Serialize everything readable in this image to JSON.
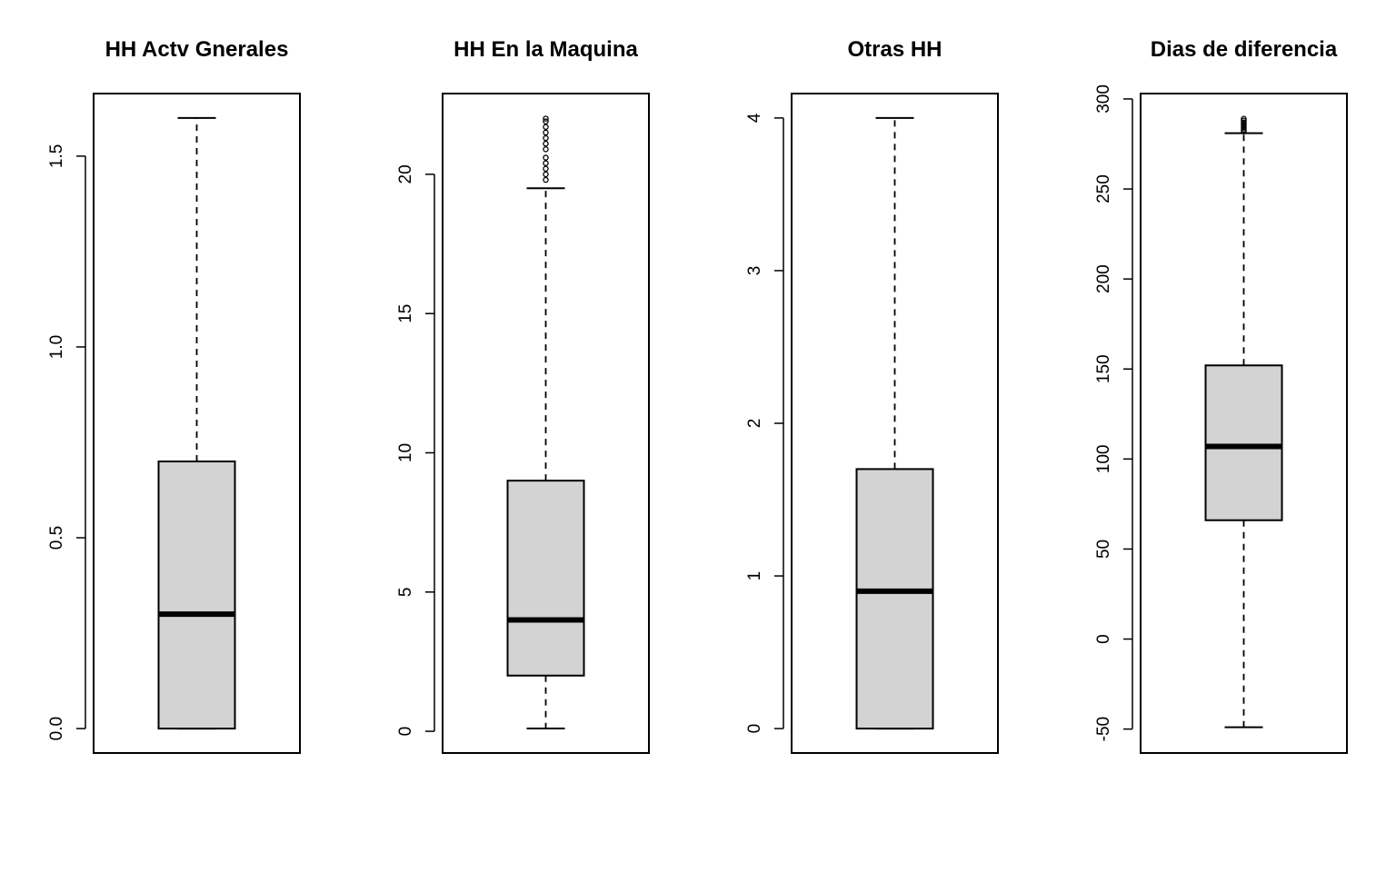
{
  "chart_data": [
    {
      "type": "boxplot",
      "title": "HH Actv Gnerales",
      "ylim": [
        -0.064,
        1.664
      ],
      "yticks": [
        0.0,
        0.5,
        1.0,
        1.5
      ],
      "ytick_labels": [
        "0.0",
        "0.5",
        "1.0",
        "1.5"
      ],
      "box": {
        "whisker_low": 0.0,
        "q1": 0.0,
        "median": 0.3,
        "q3": 0.7,
        "whisker_high": 1.6
      },
      "outliers": [],
      "box_fill": "#d3d3d3"
    },
    {
      "type": "boxplot",
      "title": "HH En la Maquina",
      "ylim": [
        -0.78,
        22.9
      ],
      "yticks": [
        0,
        5,
        10,
        15,
        20
      ],
      "ytick_labels": [
        "0",
        "5",
        "10",
        "15",
        "20"
      ],
      "box": {
        "whisker_low": 0.1,
        "q1": 2.0,
        "median": 4.0,
        "q3": 9.0,
        "whisker_high": 19.5
      },
      "outliers": [
        19.8,
        20.0,
        20.2,
        20.4,
        20.6,
        20.9,
        21.1,
        21.3,
        21.5,
        21.7,
        21.9,
        22.0
      ],
      "box_fill": "#d3d3d3"
    },
    {
      "type": "boxplot",
      "title": "Otras HH",
      "ylim": [
        -0.16,
        4.16
      ],
      "yticks": [
        0,
        1,
        2,
        3,
        4
      ],
      "ytick_labels": [
        "0",
        "1",
        "2",
        "3",
        "4"
      ],
      "box": {
        "whisker_low": 0.0,
        "q1": 0.0,
        "median": 0.9,
        "q3": 1.7,
        "whisker_high": 4.0
      },
      "outliers": [],
      "box_fill": "#d3d3d3"
    },
    {
      "type": "boxplot",
      "title": "Dias de diferencia",
      "ylim": [
        -63.3,
        303.0
      ],
      "yticks": [
        -50,
        0,
        50,
        100,
        150,
        200,
        250,
        300
      ],
      "ytick_labels": [
        "-50",
        "0",
        "50",
        "100",
        "150",
        "200",
        "250",
        "300"
      ],
      "box": {
        "whisker_low": -49,
        "q1": 66,
        "median": 107,
        "q3": 152,
        "whisker_high": 281
      },
      "outliers": [
        282,
        283,
        284,
        285,
        286,
        287,
        288,
        289
      ],
      "box_fill": "#d3d3d3"
    }
  ]
}
